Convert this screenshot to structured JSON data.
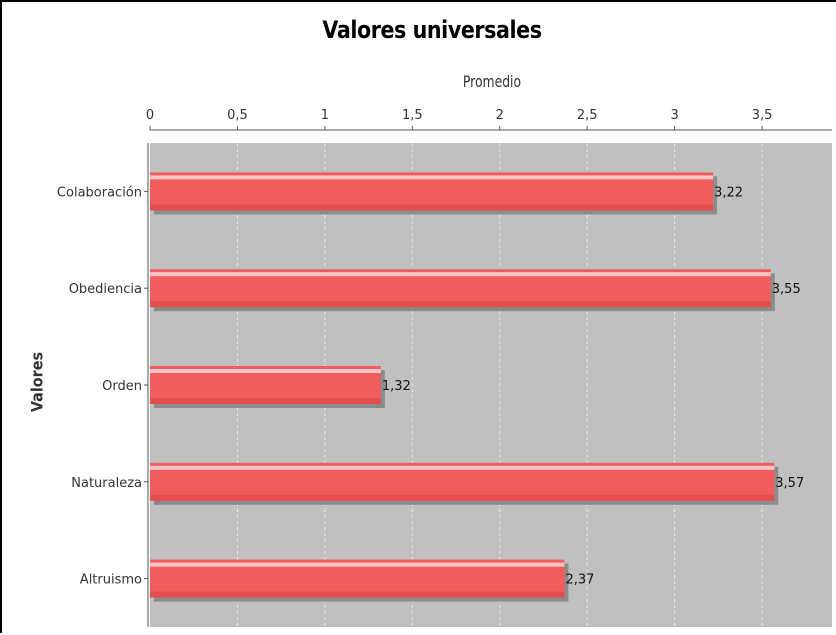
{
  "chart_data": {
    "type": "bar",
    "orientation": "horizontal",
    "title": "Valores universales",
    "xlabel": "Promedio",
    "ylabel": "Valores",
    "xlim": [
      0,
      3.9
    ],
    "ticks": [
      "0",
      "0,5",
      "1",
      "1,5",
      "2",
      "2,5",
      "3",
      "3,5"
    ],
    "tick_values": [
      0,
      0.5,
      1,
      1.5,
      2,
      2.5,
      3,
      3.5
    ],
    "categories": [
      "Colaboración",
      "Obediencia",
      "Orden",
      "Naturaleza",
      "Altruismo"
    ],
    "values": [
      3.22,
      3.55,
      1.32,
      3.57,
      2.37
    ],
    "value_labels": [
      "3,22",
      "3,55",
      "1,32",
      "3,57",
      "2,37"
    ],
    "grid": true,
    "legend": "none",
    "colors": {
      "bar": "#f25c5c",
      "bar_highlight": "#ffd0d0",
      "bar_shadow": "#8c8c8c",
      "plot_background": "#c0c0c0",
      "grid": "#e8e8e8"
    }
  }
}
